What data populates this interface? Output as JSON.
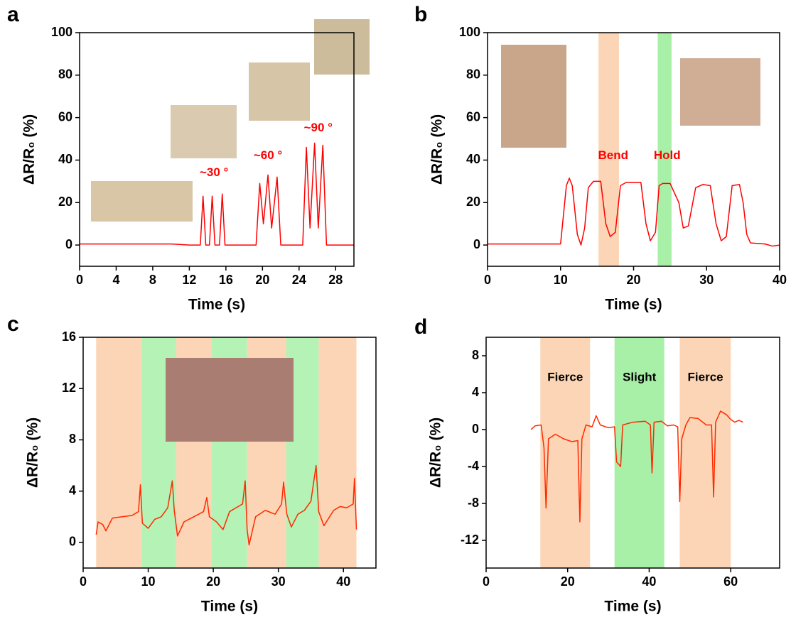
{
  "chart_data": [
    {
      "type": "line",
      "panel": "a",
      "x_label": "Time (s)",
      "y_label": "ΔR/R₀ (%)",
      "color": "#ff0000",
      "xlim": [
        0,
        30
      ],
      "xticks": [
        0,
        4,
        8,
        12,
        16,
        20,
        24,
        28
      ],
      "ylim": [
        -10,
        100
      ],
      "yticks": [
        0,
        20,
        40,
        60,
        80,
        100
      ],
      "annotations": [
        "~30 °",
        "~60 °",
        "~90 °"
      ],
      "annotation_color": "#ff0000",
      "bands": [],
      "x": [
        0,
        10,
        12,
        13.2,
        13.5,
        13.8,
        14.2,
        14.5,
        14.8,
        15.3,
        15.6,
        15.9,
        19.3,
        19.7,
        20.1,
        20.6,
        21.0,
        21.6,
        22.0,
        24.4,
        24.8,
        25.2,
        25.7,
        26.1,
        26.6,
        27.0,
        30
      ],
      "values": [
        0.5,
        0.5,
        0,
        0,
        23,
        0,
        0,
        23,
        0,
        0,
        24,
        0,
        0,
        29,
        10,
        33,
        8,
        32,
        0,
        0,
        46,
        8,
        48,
        8,
        47,
        0,
        0
      ]
    },
    {
      "type": "line",
      "panel": "b",
      "x_label": "Time (s)",
      "y_label": "ΔR/R₀ (%)",
      "color": "#ff0000",
      "xlim": [
        0,
        40
      ],
      "xticks": [
        0,
        10,
        20,
        30,
        40
      ],
      "ylim": [
        -10,
        100
      ],
      "yticks": [
        0,
        20,
        40,
        60,
        80,
        100
      ],
      "annotations": [
        "Bend",
        "Hold"
      ],
      "annotation_color": "#ff0000",
      "bands": [
        {
          "x": [
            15.2,
            18
          ],
          "color": "#fbd5b5"
        },
        {
          "x": [
            23.3,
            25.2
          ],
          "color": "#a8f0a8"
        }
      ],
      "x": [
        0,
        10,
        10.8,
        11.2,
        11.6,
        12.3,
        12.8,
        13.3,
        13.8,
        14.5,
        15.5,
        16.2,
        16.8,
        17.5,
        18.2,
        19,
        21,
        21.7,
        22.3,
        23,
        23.5,
        24,
        25,
        26.2,
        26.8,
        27.5,
        28.5,
        29.5,
        30.5,
        31.3,
        32,
        32.7,
        33.5,
        34.5,
        35,
        35.5,
        36,
        38,
        39,
        40
      ],
      "values": [
        0.5,
        0.5,
        28,
        31.5,
        28,
        5,
        0,
        8,
        27,
        30,
        30,
        10,
        4,
        6,
        28,
        29.5,
        29.5,
        10,
        2,
        6,
        28,
        29,
        29,
        20,
        8,
        9,
        27,
        28.5,
        28,
        10,
        2,
        4,
        28,
        28.5,
        20,
        5,
        1,
        0.5,
        -0.5,
        0
      ]
    },
    {
      "type": "line",
      "panel": "c",
      "x_label": "Time (s)",
      "y_label": "ΔR/R₀ (%)",
      "color": "#ff2a00",
      "xlim": [
        0,
        45
      ],
      "xticks": [
        0,
        10,
        20,
        30,
        40
      ],
      "ylim": [
        -2,
        16
      ],
      "yticks": [
        0,
        4,
        8,
        12,
        16
      ],
      "annotations": [],
      "annotation_color": "#000000",
      "bands": [
        {
          "x": [
            2,
            9
          ],
          "color": "#fbd5b5"
        },
        {
          "x": [
            9,
            14.3
          ],
          "color": "#b5f2b5"
        },
        {
          "x": [
            14.3,
            19.7
          ],
          "color": "#fbd5b5"
        },
        {
          "x": [
            19.7,
            25.2
          ],
          "color": "#b5f2b5"
        },
        {
          "x": [
            25.2,
            31.2
          ],
          "color": "#fbd5b5"
        },
        {
          "x": [
            31.2,
            36.2
          ],
          "color": "#b5f2b5"
        },
        {
          "x": [
            36.2,
            42
          ],
          "color": "#fbd5b5"
        }
      ],
      "x": [
        2,
        2.3,
        3,
        3.5,
        4.5,
        6,
        7.5,
        8.5,
        8.8,
        9.1,
        10,
        11,
        12,
        13,
        13.7,
        14,
        14.5,
        15.5,
        17,
        18.5,
        19,
        19.4,
        20.5,
        21.5,
        22.5,
        23.5,
        24.5,
        24.9,
        25.2,
        25.5,
        26.5,
        28,
        29.5,
        30.5,
        30.8,
        31.3,
        32,
        33,
        34,
        35,
        35.8,
        36.2,
        37,
        38.5,
        39.5,
        40.5,
        41.5,
        41.7,
        42
      ],
      "values": [
        0.6,
        1.6,
        1.4,
        0.9,
        1.9,
        2.0,
        2.1,
        2.4,
        4.5,
        1.5,
        1.1,
        1.8,
        2.0,
        2.7,
        4.8,
        2.5,
        0.5,
        1.6,
        2.0,
        2.4,
        3.5,
        2.0,
        1.6,
        1.0,
        2.4,
        2.7,
        3.0,
        4.8,
        1.0,
        -0.2,
        2.0,
        2.5,
        2.2,
        3.0,
        4.7,
        2.2,
        1.2,
        2.2,
        2.5,
        3.2,
        6.0,
        2.4,
        1.3,
        2.5,
        2.8,
        2.7,
        3.0,
        5.0,
        1.0
      ]
    },
    {
      "type": "line",
      "panel": "d",
      "x_label": "Time (s)",
      "y_label": "ΔR/R₀ (%)",
      "color": "#ff2a00",
      "xlim": [
        0,
        72
      ],
      "xticks": [
        0,
        20,
        40,
        60
      ],
      "ylim": [
        -15,
        10
      ],
      "yticks": [
        -12,
        -8,
        -4,
        0,
        4,
        8
      ],
      "annotations": [
        "Fierce",
        "Slight",
        "Fierce"
      ],
      "annotation_color": "#000000",
      "bands": [
        {
          "x": [
            13.3,
            25.5
          ],
          "color": "#fbd5b5"
        },
        {
          "x": [
            31.5,
            43.7
          ],
          "color": "#a8f0a8"
        },
        {
          "x": [
            47.5,
            60
          ],
          "color": "#fbd5b5"
        }
      ],
      "x": [
        11,
        12,
        13.5,
        14.2,
        14.7,
        15.3,
        17,
        19,
        21,
        22.5,
        23,
        23.5,
        24.5,
        26,
        27,
        28,
        30,
        31.5,
        32,
        33,
        33.5,
        36,
        39,
        40.3,
        40.7,
        41.2,
        43,
        44.5,
        46,
        47,
        47.5,
        48,
        49,
        50,
        52,
        54,
        55.3,
        55.8,
        56.3,
        57.5,
        59,
        60,
        61,
        62,
        63
      ],
      "values": [
        0,
        0.4,
        0.5,
        -2,
        -8.5,
        -1,
        -0.5,
        -1,
        -1.3,
        -1.2,
        -10,
        -1,
        0.5,
        0.3,
        1.5,
        0.5,
        0.2,
        0.3,
        -3.5,
        -4,
        0.5,
        0.8,
        0.9,
        0.5,
        -4.7,
        0.8,
        0.9,
        0.4,
        0.5,
        0.3,
        -7.8,
        -1,
        0.5,
        1.3,
        1.2,
        0.5,
        0.5,
        -7.3,
        0.8,
        2.0,
        1.6,
        1.1,
        0.8,
        1.0,
        0.8
      ]
    }
  ]
}
